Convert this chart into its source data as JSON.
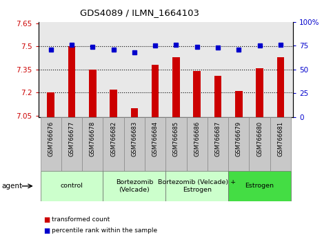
{
  "title": "GDS4089 / ILMN_1664103",
  "samples": [
    "GSM766676",
    "GSM766677",
    "GSM766678",
    "GSM766682",
    "GSM766683",
    "GSM766684",
    "GSM766685",
    "GSM766686",
    "GSM766687",
    "GSM766679",
    "GSM766680",
    "GSM766681"
  ],
  "transformed_count": [
    7.2,
    7.5,
    7.35,
    7.22,
    7.1,
    7.38,
    7.43,
    7.34,
    7.31,
    7.21,
    7.36,
    7.43
  ],
  "percentile_rank": [
    71,
    76,
    74,
    71,
    68,
    75,
    76,
    74,
    73,
    71,
    75,
    76
  ],
  "bar_color": "#cc0000",
  "dot_color": "#0000cc",
  "ylim_left": [
    7.04,
    7.66
  ],
  "ylim_right": [
    0,
    100
  ],
  "yticks_left": [
    7.05,
    7.2,
    7.35,
    7.5,
    7.65
  ],
  "yticks_right": [
    0,
    25,
    50,
    75,
    100
  ],
  "ytick_labels_left": [
    "7.05",
    "7.2",
    "7.35",
    "7.5",
    "7.65"
  ],
  "ytick_labels_right": [
    "0",
    "25",
    "50",
    "75",
    "100%"
  ],
  "hlines": [
    7.2,
    7.35,
    7.5
  ],
  "group_defs": [
    {
      "start": 0,
      "end": 2,
      "label": "control",
      "color": "#ccffcc"
    },
    {
      "start": 3,
      "end": 5,
      "label": "Bortezomib\n(Velcade)",
      "color": "#ccffcc"
    },
    {
      "start": 6,
      "end": 8,
      "label": "Bortezomib (Velcade) +\nEstrogen",
      "color": "#ccffcc"
    },
    {
      "start": 9,
      "end": 11,
      "label": "Estrogen",
      "color": "#44dd44"
    }
  ],
  "bar_width": 0.35,
  "bg_color_plot": "#e8e8e8",
  "cell_color": "#c8c8c8",
  "legend_bar_label": "transformed count",
  "legend_dot_label": "percentile rank within the sample"
}
